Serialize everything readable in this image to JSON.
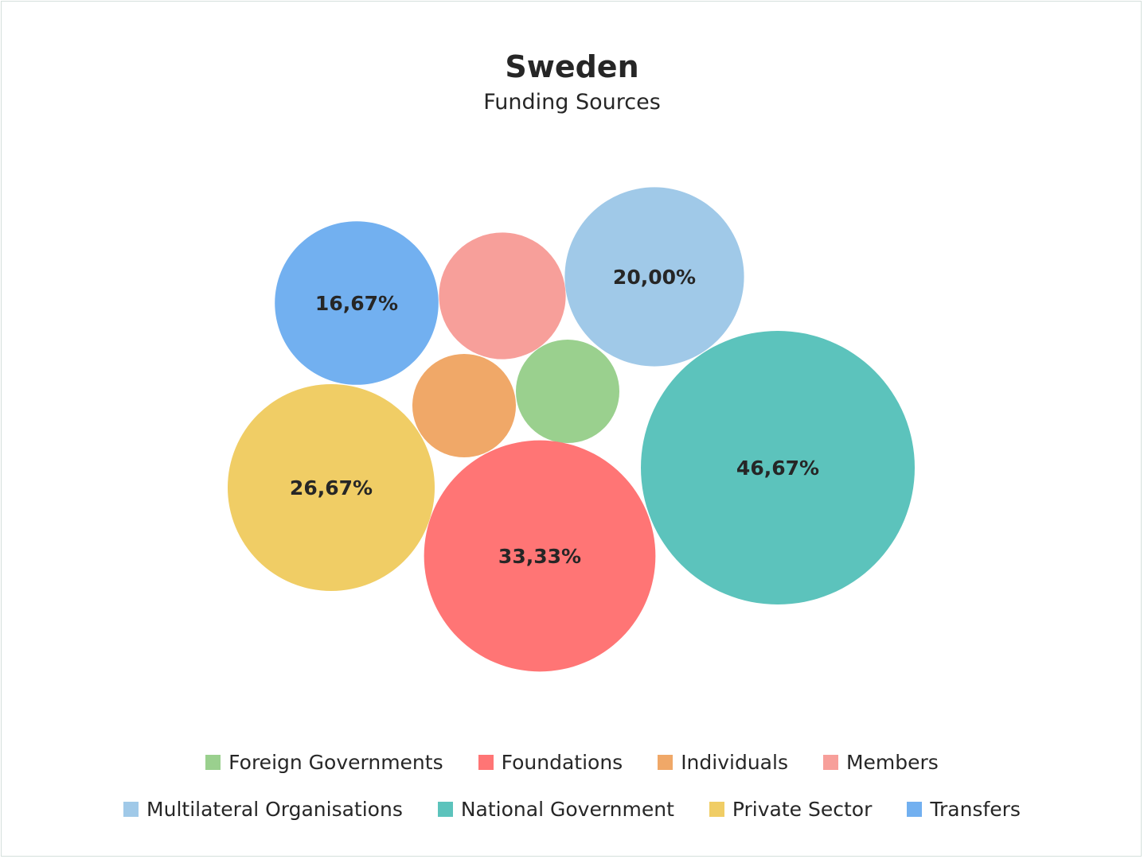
{
  "chart_data": {
    "type": "bubble",
    "title": "Sweden",
    "subtitle": "Funding Sources",
    "legend_position": "bottom",
    "series": [
      {
        "name": "Foreign Governments",
        "value": 6.67,
        "label": "",
        "color": "#9ad08e"
      },
      {
        "name": "Foundations",
        "value": 33.33,
        "label": "33,33%",
        "color": "#ff7575"
      },
      {
        "name": "Individuals",
        "value": 6.67,
        "label": "",
        "color": "#f0a868"
      },
      {
        "name": "Members",
        "value": 10.0,
        "label": "",
        "color": "#f79f9a"
      },
      {
        "name": "Multilateral Organisations",
        "value": 20.0,
        "label": "20,00%",
        "color": "#a0c9e8"
      },
      {
        "name": "National Government",
        "value": 46.67,
        "label": "46,67%",
        "color": "#5cc3bc"
      },
      {
        "name": "Private Sector",
        "value": 26.67,
        "label": "26,67%",
        "color": "#f0cd65"
      },
      {
        "name": "Transfers",
        "value": 16.67,
        "label": "16,67%",
        "color": "#72b0f0"
      }
    ]
  }
}
